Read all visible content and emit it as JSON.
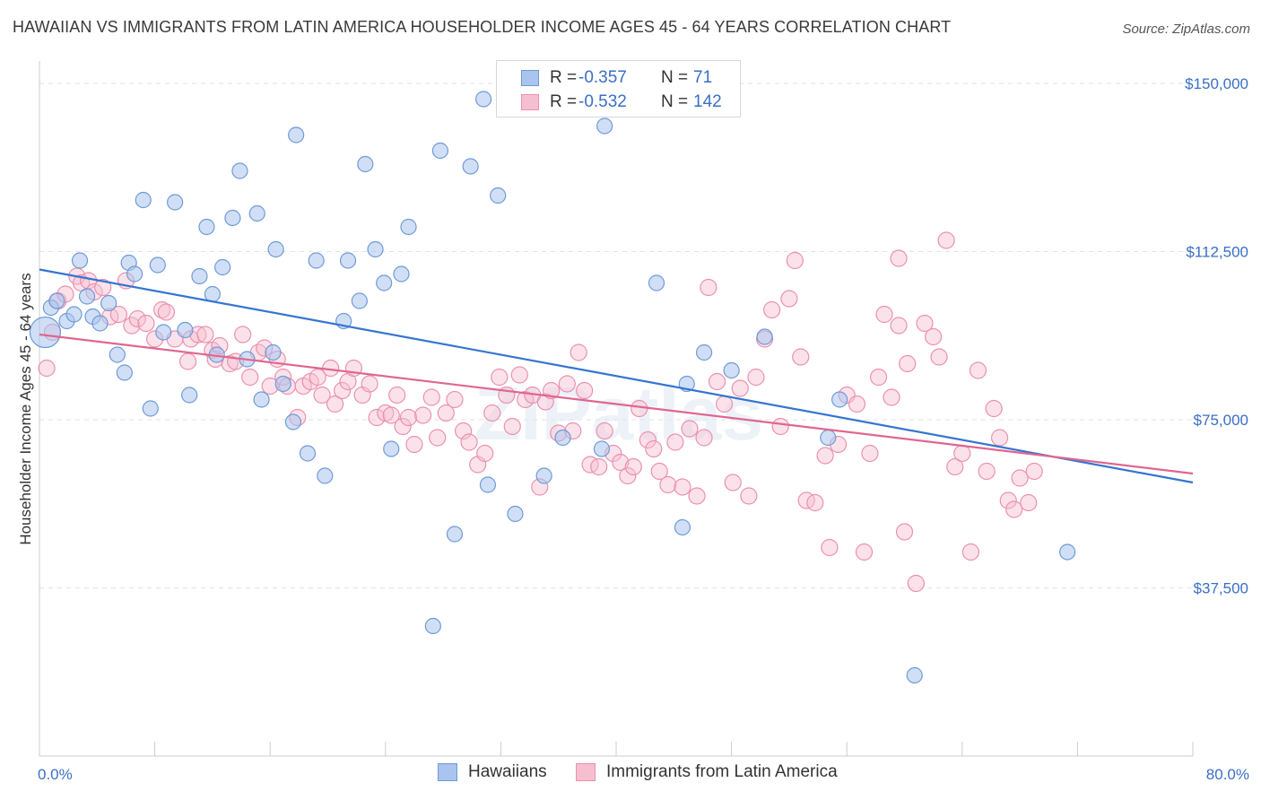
{
  "title": "HAWAIIAN VS IMMIGRANTS FROM LATIN AMERICA HOUSEHOLDER INCOME AGES 45 - 64 YEARS CORRELATION CHART",
  "source": "Source: ZipAtlas.com",
  "watermark": "ZIPatlas",
  "colors": {
    "hawaiians_fill": "#a9c4ee",
    "hawaiians_stroke": "#6f9ad6",
    "hawaiians_line": "#3575d0",
    "immigrants_fill": "#f6bfd0",
    "immigrants_stroke": "#ec90ad",
    "immigrants_line": "#e0668f",
    "axis_text": "#3a6fc4",
    "grid": "#e2e2e2"
  },
  "legend_top": {
    "rows": [
      {
        "r_label": "R =",
        "r_value": "-0.357",
        "n_label": "N =",
        "n_value": "71"
      },
      {
        "r_label": "R =",
        "r_value": "-0.532",
        "n_label": "N =",
        "n_value": "142"
      }
    ]
  },
  "legend_bottom": {
    "items": [
      "Hawaiians",
      "Immigrants from Latin America"
    ]
  },
  "chart_data": {
    "type": "scatter",
    "title": "HAWAIIAN VS IMMIGRANTS FROM LATIN AMERICA HOUSEHOLDER INCOME AGES 45 - 64 YEARS CORRELATION CHART",
    "xlabel": "",
    "ylabel": "Householder Income Ages 45 - 64 years",
    "xlim": [
      0,
      80
    ],
    "ylim": [
      0,
      155000
    ],
    "x_tick_labels": [
      "0.0%",
      "80.0%"
    ],
    "y_ticks": [
      37500,
      75000,
      112500,
      150000
    ],
    "y_tick_labels": [
      "$37,500",
      "$75,000",
      "$112,500",
      "$150,000"
    ],
    "grid": "horizontal dashed",
    "legend_position": "top-center",
    "series": [
      {
        "name": "Hawaiians",
        "R": -0.357,
        "N": 71,
        "trend": {
          "x": [
            0,
            80
          ],
          "y": [
            108500,
            61000
          ]
        },
        "points": [
          [
            0.4,
            94500
          ],
          [
            0.8,
            100000
          ],
          [
            1.2,
            101500
          ],
          [
            1.9,
            97000
          ],
          [
            2.4,
            98500
          ],
          [
            2.8,
            110500
          ],
          [
            3.3,
            102500
          ],
          [
            3.7,
            98000
          ],
          [
            4.2,
            96500
          ],
          [
            4.8,
            101000
          ],
          [
            5.4,
            89500
          ],
          [
            5.9,
            85500
          ],
          [
            6.2,
            110000
          ],
          [
            6.6,
            107500
          ],
          [
            7.2,
            124000
          ],
          [
            7.7,
            77500
          ],
          [
            8.2,
            109500
          ],
          [
            8.6,
            94500
          ],
          [
            9.4,
            123500
          ],
          [
            10.1,
            95000
          ],
          [
            10.4,
            80500
          ],
          [
            11.1,
            107000
          ],
          [
            11.6,
            118000
          ],
          [
            12.0,
            103000
          ],
          [
            12.3,
            89500
          ],
          [
            12.7,
            109000
          ],
          [
            13.4,
            120000
          ],
          [
            13.9,
            130500
          ],
          [
            14.4,
            88500
          ],
          [
            15.1,
            121000
          ],
          [
            15.4,
            79500
          ],
          [
            16.2,
            90000
          ],
          [
            16.4,
            113000
          ],
          [
            16.9,
            83000
          ],
          [
            17.6,
            74500
          ],
          [
            17.8,
            138500
          ],
          [
            18.6,
            67500
          ],
          [
            19.2,
            110500
          ],
          [
            19.8,
            62500
          ],
          [
            21.1,
            97000
          ],
          [
            21.4,
            110500
          ],
          [
            22.2,
            101500
          ],
          [
            22.6,
            132000
          ],
          [
            23.3,
            113000
          ],
          [
            23.9,
            105500
          ],
          [
            24.4,
            68500
          ],
          [
            25.1,
            107500
          ],
          [
            25.6,
            118000
          ],
          [
            27.3,
            29000
          ],
          [
            27.8,
            135000
          ],
          [
            28.8,
            49500
          ],
          [
            29.9,
            131500
          ],
          [
            30.8,
            146500
          ],
          [
            31.1,
            60500
          ],
          [
            31.8,
            125000
          ],
          [
            33.0,
            54000
          ],
          [
            33.3,
            149500
          ],
          [
            35.0,
            62500
          ],
          [
            36.3,
            71000
          ],
          [
            39.0,
            68500
          ],
          [
            39.2,
            140500
          ],
          [
            42.8,
            105500
          ],
          [
            44.6,
            51000
          ],
          [
            44.9,
            83000
          ],
          [
            46.1,
            90000
          ],
          [
            48.0,
            86000
          ],
          [
            50.3,
            93500
          ],
          [
            54.7,
            71000
          ],
          [
            55.5,
            79500
          ],
          [
            60.7,
            18000
          ],
          [
            71.3,
            45500
          ]
        ]
      },
      {
        "name": "Immigrants from Latin America",
        "R": -0.532,
        "N": 142,
        "trend": {
          "x": [
            0,
            80
          ],
          "y": [
            94000,
            63000
          ]
        },
        "points": [
          [
            0.5,
            86500
          ],
          [
            0.9,
            94500
          ],
          [
            1.3,
            101500
          ],
          [
            1.8,
            103000
          ],
          [
            2.6,
            107000
          ],
          [
            2.9,
            105500
          ],
          [
            3.4,
            106000
          ],
          [
            3.8,
            103500
          ],
          [
            4.4,
            104500
          ],
          [
            4.9,
            98000
          ],
          [
            5.5,
            98500
          ],
          [
            6.0,
            106000
          ],
          [
            6.4,
            96000
          ],
          [
            6.8,
            97500
          ],
          [
            7.4,
            96500
          ],
          [
            8.0,
            93000
          ],
          [
            8.5,
            99500
          ],
          [
            8.8,
            99000
          ],
          [
            9.4,
            93000
          ],
          [
            10.3,
            88000
          ],
          [
            10.5,
            93000
          ],
          [
            11.0,
            94000
          ],
          [
            11.5,
            94000
          ],
          [
            12.0,
            90500
          ],
          [
            12.2,
            88500
          ],
          [
            12.5,
            91500
          ],
          [
            13.2,
            87500
          ],
          [
            13.6,
            88000
          ],
          [
            14.1,
            94000
          ],
          [
            14.6,
            84500
          ],
          [
            15.2,
            90000
          ],
          [
            15.6,
            91000
          ],
          [
            16.0,
            82500
          ],
          [
            16.5,
            88500
          ],
          [
            16.9,
            84500
          ],
          [
            17.2,
            82500
          ],
          [
            17.9,
            75500
          ],
          [
            18.3,
            82500
          ],
          [
            18.8,
            83500
          ],
          [
            19.3,
            84500
          ],
          [
            19.6,
            80500
          ],
          [
            20.2,
            86500
          ],
          [
            20.5,
            78500
          ],
          [
            21.0,
            81500
          ],
          [
            21.4,
            83500
          ],
          [
            21.8,
            86500
          ],
          [
            22.4,
            80500
          ],
          [
            22.9,
            83000
          ],
          [
            23.4,
            75500
          ],
          [
            24.0,
            76500
          ],
          [
            24.4,
            76000
          ],
          [
            24.8,
            80500
          ],
          [
            25.2,
            73500
          ],
          [
            25.6,
            75500
          ],
          [
            26.0,
            69500
          ],
          [
            26.6,
            76000
          ],
          [
            27.2,
            80000
          ],
          [
            27.6,
            71000
          ],
          [
            28.2,
            76500
          ],
          [
            28.8,
            79500
          ],
          [
            29.4,
            72500
          ],
          [
            29.8,
            70000
          ],
          [
            30.4,
            65000
          ],
          [
            30.9,
            67500
          ],
          [
            31.4,
            76500
          ],
          [
            31.9,
            84500
          ],
          [
            32.4,
            80500
          ],
          [
            32.8,
            73500
          ],
          [
            33.3,
            85000
          ],
          [
            33.7,
            79500
          ],
          [
            34.2,
            80500
          ],
          [
            34.7,
            60000
          ],
          [
            35.1,
            79000
          ],
          [
            35.5,
            81500
          ],
          [
            36.0,
            72000
          ],
          [
            36.6,
            83000
          ],
          [
            37.0,
            72500
          ],
          [
            37.4,
            90000
          ],
          [
            37.8,
            81500
          ],
          [
            38.2,
            65000
          ],
          [
            38.8,
            64500
          ],
          [
            39.2,
            72500
          ],
          [
            39.8,
            67500
          ],
          [
            40.3,
            65500
          ],
          [
            40.8,
            62500
          ],
          [
            41.2,
            64500
          ],
          [
            41.6,
            77500
          ],
          [
            42.2,
            70500
          ],
          [
            42.6,
            68500
          ],
          [
            43.0,
            63500
          ],
          [
            43.6,
            60500
          ],
          [
            44.1,
            70000
          ],
          [
            44.6,
            60000
          ],
          [
            45.1,
            73000
          ],
          [
            45.6,
            58000
          ],
          [
            46.1,
            71000
          ],
          [
            46.4,
            104500
          ],
          [
            47.0,
            83500
          ],
          [
            47.5,
            78500
          ],
          [
            48.1,
            61000
          ],
          [
            48.6,
            82000
          ],
          [
            49.2,
            58000
          ],
          [
            49.7,
            84500
          ],
          [
            50.3,
            93000
          ],
          [
            50.8,
            99500
          ],
          [
            51.4,
            73500
          ],
          [
            52.0,
            102000
          ],
          [
            52.4,
            110500
          ],
          [
            52.8,
            89000
          ],
          [
            53.2,
            57000
          ],
          [
            53.8,
            56500
          ],
          [
            54.5,
            67000
          ],
          [
            54.8,
            46500
          ],
          [
            55.4,
            69500
          ],
          [
            56.0,
            80500
          ],
          [
            56.7,
            78500
          ],
          [
            57.2,
            45500
          ],
          [
            57.6,
            67500
          ],
          [
            58.2,
            84500
          ],
          [
            58.6,
            98500
          ],
          [
            59.1,
            80000
          ],
          [
            59.6,
            96000
          ],
          [
            60.2,
            87500
          ],
          [
            60.8,
            38500
          ],
          [
            61.4,
            96500
          ],
          [
            62.0,
            93500
          ],
          [
            62.4,
            89000
          ],
          [
            62.9,
            115000
          ],
          [
            63.5,
            64500
          ],
          [
            64.0,
            67500
          ],
          [
            64.6,
            45500
          ],
          [
            65.1,
            86000
          ],
          [
            65.7,
            63500
          ],
          [
            66.2,
            77500
          ],
          [
            66.6,
            71000
          ],
          [
            67.2,
            57000
          ],
          [
            67.6,
            55000
          ],
          [
            68.0,
            62000
          ],
          [
            68.6,
            56500
          ],
          [
            69.0,
            63500
          ],
          [
            59.6,
            111000
          ],
          [
            60.0,
            50000
          ]
        ]
      }
    ]
  }
}
